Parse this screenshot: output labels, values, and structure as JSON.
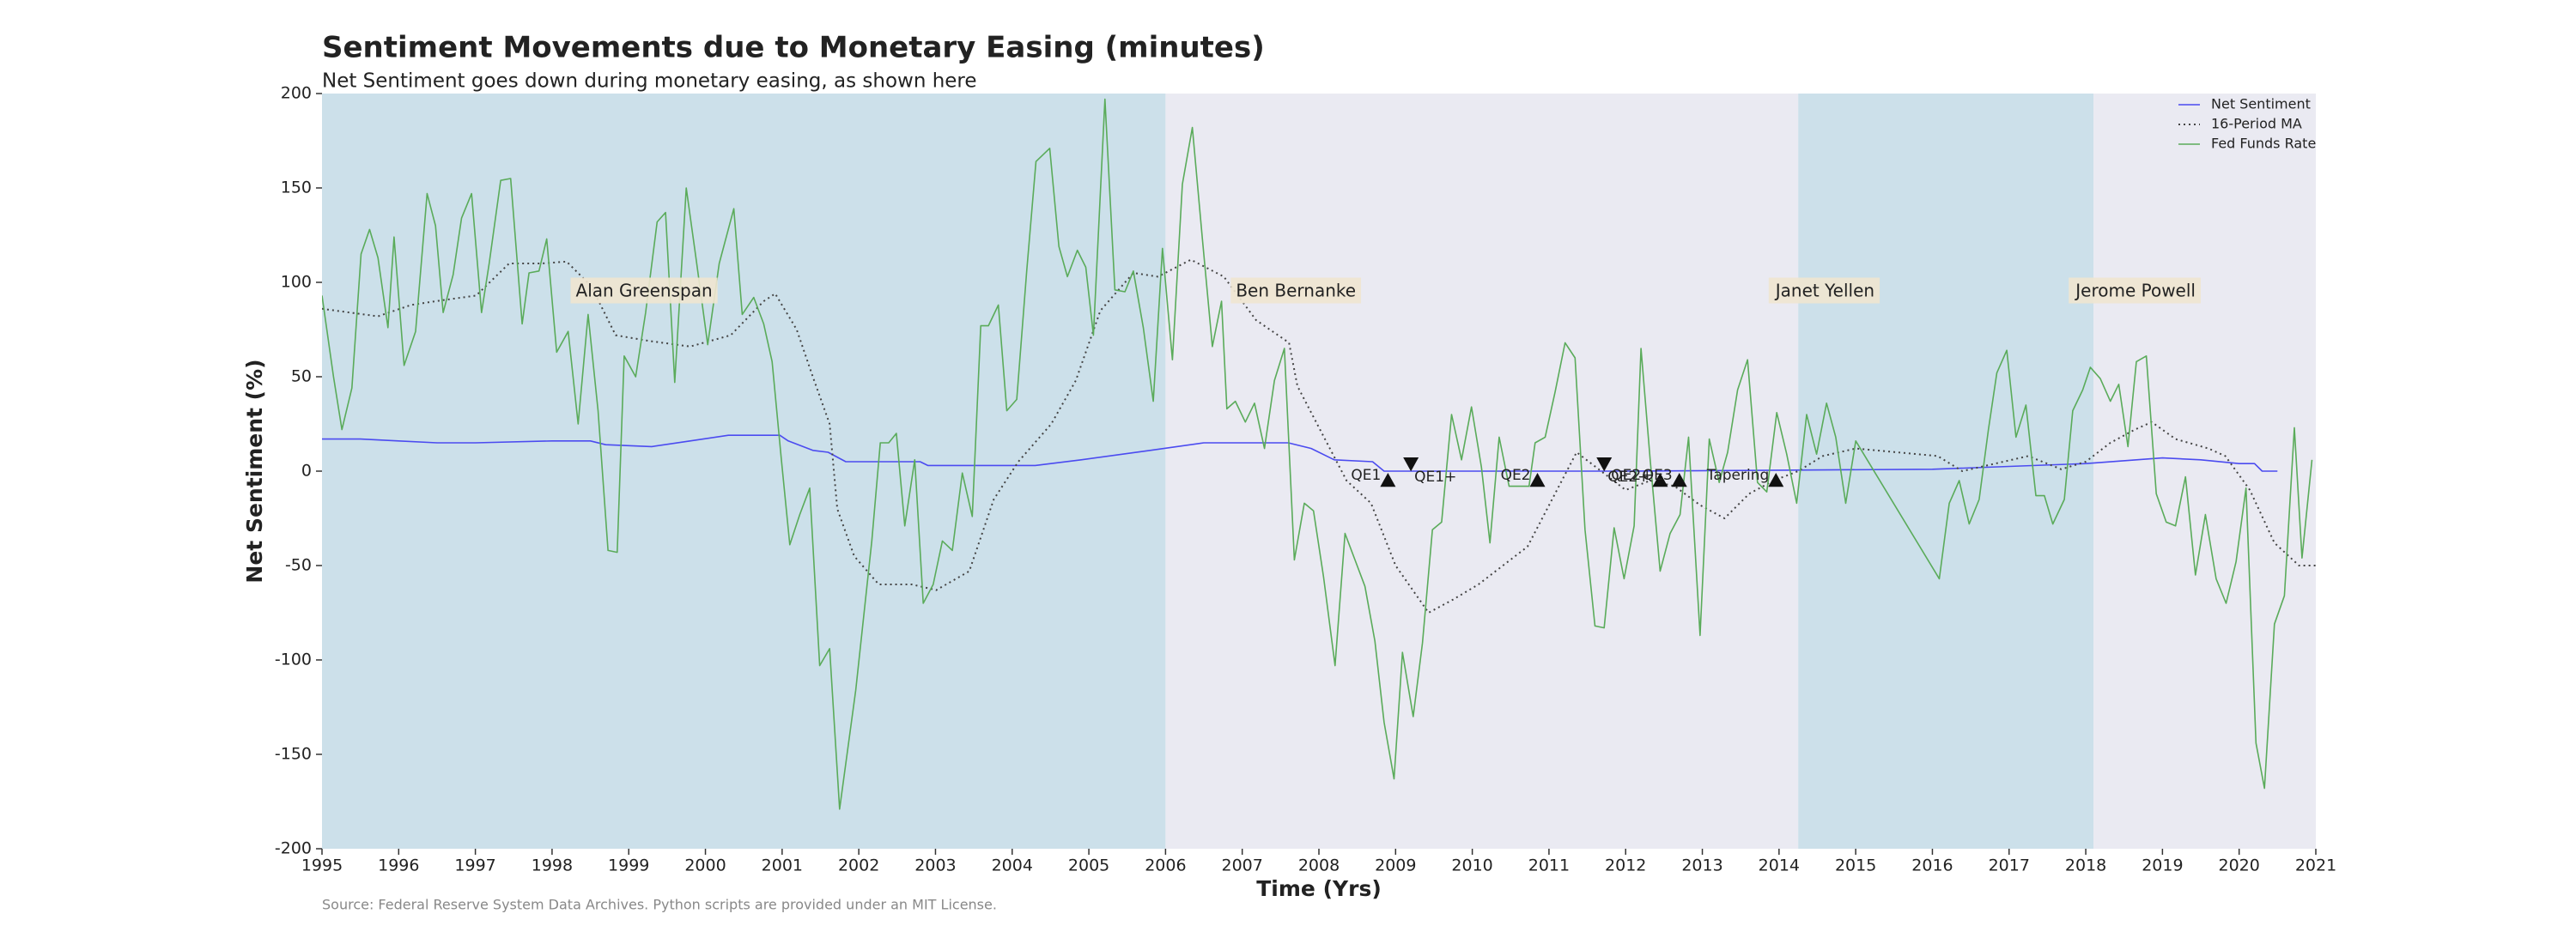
{
  "chart_data": {
    "type": "line",
    "title": "Sentiment Movements due to Monetary Easing (minutes)",
    "subtitle": "Net Sentiment goes down during monetary easing, as shown here",
    "x_label": "Time (Yrs)",
    "y_label": "Net Sentiment (%)",
    "source": "Source: Federal Reserve System Data Archives. Python scripts are provided under an MIT License.",
    "xlim": [
      1995,
      2021
    ],
    "ylim": [
      -200,
      200
    ],
    "xticks": [
      1995,
      1996,
      1997,
      1998,
      1999,
      2000,
      2001,
      2002,
      2003,
      2004,
      2005,
      2006,
      2007,
      2008,
      2009,
      2010,
      2011,
      2012,
      2013,
      2014,
      2015,
      2016,
      2017,
      2018,
      2019,
      2020,
      2021
    ],
    "yticks": [
      -200,
      -150,
      -100,
      -50,
      0,
      50,
      100,
      150,
      200
    ],
    "legend": "upper right",
    "regions": [
      {
        "label": "Alan Greenspan",
        "start": 1995,
        "end": 2006,
        "label_x": 1999.2,
        "label_y": 95,
        "color": "#cce0ea"
      },
      {
        "label": "Ben Bernanke",
        "start": 2006,
        "end": 2014.25,
        "label_x": 2007.7,
        "label_y": 95,
        "color": "#eaeaf2"
      },
      {
        "label": "Janet Yellen",
        "start": 2014.25,
        "end": 2018.1,
        "label_x": 2014.6,
        "label_y": 95,
        "color": "#cce0ea"
      },
      {
        "label": "Jerome Powell",
        "start": 2018.1,
        "end": 2021,
        "label_x": 2018.65,
        "label_y": 95,
        "color": "#eaeaf2"
      }
    ],
    "events": [
      {
        "label": "QE1",
        "x": 2008.9,
        "y": -5,
        "marker": "up"
      },
      {
        "label": "QE1+",
        "x": 2009.2,
        "y": 4,
        "marker": "down"
      },
      {
        "label": "QE2",
        "x": 2010.85,
        "y": -5,
        "marker": "up"
      },
      {
        "label": "QE2+",
        "x": 2011.72,
        "y": 4,
        "marker": "down"
      },
      {
        "label": "QE2+",
        "x": 2012.45,
        "y": -5,
        "marker": "up"
      },
      {
        "label": "QE3",
        "x": 2012.7,
        "y": -5,
        "marker": "up"
      },
      {
        "label": "Tapering",
        "x": 2013.96,
        "y": -5,
        "marker": "up"
      }
    ],
    "series": [
      {
        "name": "Net Sentiment",
        "color": "#4b4bf0",
        "linestyle": "solid",
        "x": [
          1995,
          1995.5,
          1996,
          1996.5,
          1997,
          1998,
          1998.5,
          1998.7,
          1999.3,
          1999.8,
          2000.3,
          2000.97,
          2001.08,
          2001.4,
          2001.6,
          2001.83,
          2002.8,
          2002.9,
          2004.3,
          2004.9,
          2005.8,
          2006.5,
          2007.6,
          2007.9,
          2008.2,
          2008.7,
          2008.85,
          2012,
          2016,
          2018,
          2019,
          2019.5,
          2020,
          2020.2,
          2020.3,
          2020.5
        ],
        "values": [
          17,
          17,
          16,
          15,
          15,
          16,
          16,
          14,
          13,
          16,
          19,
          19,
          16,
          11,
          10,
          5,
          5,
          3,
          3,
          6,
          11,
          15,
          15,
          12,
          6,
          5,
          0,
          0,
          1,
          4,
          7,
          6,
          4,
          4,
          0,
          0
        ]
      },
      {
        "name": "16-Period MA",
        "color": "#444444",
        "linestyle": "dotted",
        "x": [
          1995.0,
          1995.73,
          1996.16,
          1996.48,
          1997.01,
          1997.44,
          1997.87,
          1998.19,
          1998.51,
          1998.83,
          1999.26,
          1999.8,
          2000.33,
          2000.76,
          2000.91,
          2001.19,
          2001.4,
          2001.62,
          2001.72,
          2001.94,
          2002.26,
          2002.69,
          2003.01,
          2003.44,
          2003.76,
          2004.08,
          2004.51,
          2004.83,
          2005.15,
          2005.58,
          2005.9,
          2006.33,
          2006.76,
          2007.18,
          2007.61,
          2007.72,
          2008.04,
          2008.36,
          2008.68,
          2009.0,
          2009.43,
          2009.75,
          2010.08,
          2010.4,
          2010.72,
          2011.04,
          2011.36,
          2011.68,
          2012.0,
          2012.32,
          2012.64,
          2012.97,
          2013.29,
          2013.61,
          2013.93,
          2014.25,
          2014.57,
          2015.0,
          2016.07,
          2016.39,
          2016.71,
          2017.25,
          2017.68,
          2018.0,
          2018.32,
          2018.64,
          2018.86,
          2019.17,
          2019.6,
          2019.82,
          2020.14,
          2020.46,
          2020.78,
          2021.0
        ],
        "values": [
          86,
          82,
          88,
          90,
          93,
          110,
          110,
          111,
          98,
          72,
          69,
          66,
          72,
          90,
          94,
          75,
          50,
          25,
          -20,
          -45,
          -60,
          -60,
          -63,
          -53,
          -15,
          5,
          25,
          48,
          85,
          105,
          103,
          112,
          103,
          80,
          68,
          45,
          20,
          -5,
          -17,
          -50,
          -75,
          -68,
          -60,
          -50,
          -40,
          -15,
          10,
          0,
          -10,
          -5,
          -8,
          -18,
          -25,
          -12,
          -5,
          0,
          8,
          12,
          8,
          0,
          3,
          8,
          1,
          5,
          15,
          22,
          26,
          17,
          12,
          8,
          -10,
          -38,
          -50,
          -50
        ]
      },
      {
        "name": "Fed Funds Rate",
        "color": "#5aab5a",
        "linestyle": "solid",
        "x": [
          1995.0,
          1995.15,
          1995.26,
          1995.39,
          1995.51,
          1995.62,
          1995.73,
          1995.86,
          1995.94,
          1996.07,
          1996.22,
          1996.37,
          1996.48,
          1996.58,
          1996.71,
          1996.82,
          1996.95,
          1997.08,
          1997.18,
          1997.33,
          1997.46,
          1997.61,
          1997.7,
          1997.83,
          1997.93,
          1998.06,
          1998.21,
          1998.34,
          1998.47,
          1998.6,
          1998.73,
          1998.85,
          1998.94,
          1999.09,
          1999.22,
          1999.37,
          1999.48,
          1999.6,
          1999.75,
          1999.88,
          2000.03,
          2000.18,
          2000.37,
          2000.48,
          2000.63,
          2000.76,
          2000.87,
          2000.99,
          2001.1,
          2001.23,
          2001.36,
          2001.49,
          2001.62,
          2001.75,
          2001.96,
          2002.17,
          2002.28,
          2002.39,
          2002.49,
          2002.6,
          2002.73,
          2002.84,
          2002.97,
          2003.09,
          2003.22,
          2003.35,
          2003.48,
          2003.59,
          2003.69,
          2003.82,
          2003.93,
          2004.06,
          2004.19,
          2004.31,
          2004.49,
          2004.61,
          2004.72,
          2004.85,
          2004.96,
          2005.06,
          2005.21,
          2005.34,
          2005.47,
          2005.58,
          2005.71,
          2005.84,
          2005.96,
          2006.09,
          2006.22,
          2006.35,
          2006.48,
          2006.61,
          2006.73,
          2006.8,
          2006.91,
          2007.04,
          2007.16,
          2007.29,
          2007.42,
          2007.55,
          2007.68,
          2007.81,
          2007.93,
          2008.06,
          2008.21,
          2008.34,
          2008.47,
          2008.6,
          2008.73,
          2008.85,
          2008.98,
          2009.09,
          2009.23,
          2009.35,
          2009.48,
          2009.6,
          2009.73,
          2009.86,
          2009.99,
          2010.12,
          2010.23,
          2010.35,
          2010.48,
          2010.63,
          2010.74,
          2010.82,
          2010.95,
          2011.08,
          2011.21,
          2011.34,
          2011.47,
          2011.6,
          2011.72,
          2011.85,
          2011.98,
          2012.11,
          2012.2,
          2012.32,
          2012.45,
          2012.58,
          2012.71,
          2012.82,
          2012.97,
          2013.09,
          2013.22,
          2013.33,
          2013.46,
          2013.59,
          2013.72,
          2013.84,
          2013.97,
          2014.1,
          2014.23,
          2014.36,
          2014.49,
          2014.62,
          2014.74,
          2014.87,
          2015.0,
          2016.09,
          2016.22,
          2016.35,
          2016.48,
          2016.61,
          2016.73,
          2016.84,
          2016.97,
          2017.09,
          2017.22,
          2017.35,
          2017.46,
          2017.57,
          2017.72,
          2017.83,
          2017.96,
          2018.06,
          2018.19,
          2018.32,
          2018.43,
          2018.55,
          2018.66,
          2018.79,
          2018.92,
          2019.05,
          2019.17,
          2019.3,
          2019.43,
          2019.56,
          2019.7,
          2019.83,
          2019.96,
          2020.09,
          2020.22,
          2020.33,
          2020.46,
          2020.59,
          2020.72,
          2020.82,
          2020.95
        ],
        "values": [
          93,
          50,
          22,
          44,
          115,
          128,
          113,
          76,
          124,
          56,
          74,
          147,
          130,
          84,
          104,
          134,
          147,
          84,
          110,
          154,
          155,
          78,
          105,
          106,
          123,
          63,
          74,
          25,
          83,
          32,
          -42,
          -43,
          61,
          50,
          84,
          132,
          137,
          47,
          150,
          112,
          67,
          110,
          139,
          83,
          92,
          78,
          58,
          6,
          -39,
          -23,
          -9,
          -103,
          -94,
          -179,
          -116,
          -37,
          15,
          15,
          20,
          -29,
          6,
          -70,
          -60,
          -37,
          -42,
          -1,
          -24,
          77,
          77,
          88,
          32,
          38,
          106,
          164,
          171,
          119,
          103,
          117,
          108,
          72,
          197,
          96,
          95,
          106,
          76,
          37,
          118,
          59,
          152,
          182,
          123,
          66,
          90,
          33,
          37,
          26,
          36,
          12,
          48,
          65,
          -47,
          -17,
          -21,
          -56,
          -103,
          -33,
          -47,
          -61,
          -90,
          -133,
          -163,
          -96,
          -130,
          -91,
          -31,
          -27,
          30,
          6,
          34,
          2,
          -38,
          18,
          -8,
          -8,
          -8,
          15,
          18,
          42,
          68,
          60,
          -31,
          -82,
          -83,
          -30,
          -57,
          -29,
          65,
          6,
          -53,
          -33,
          -23,
          18,
          -87,
          17,
          -6,
          10,
          43,
          59,
          -6,
          -11,
          31,
          9,
          -17,
          30,
          9,
          36,
          18,
          -17,
          16,
          -57,
          -17,
          -5,
          -28,
          -15,
          22,
          52,
          64,
          18,
          35,
          -13,
          -13,
          -28,
          -15,
          32,
          43,
          55,
          49,
          37,
          46,
          13,
          58,
          61,
          -12,
          -27,
          -29,
          -3,
          -55,
          -23,
          -57,
          -70,
          -48,
          -9,
          -144,
          -168,
          -81,
          -66,
          23,
          -46,
          6
        ]
      }
    ]
  }
}
